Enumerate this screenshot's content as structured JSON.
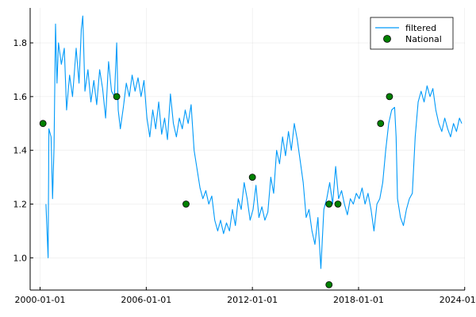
{
  "chart_data": {
    "type": "line",
    "title": "",
    "xlabel": "",
    "ylabel": "",
    "x_axis_type": "date",
    "xlim": [
      "1999-06-10",
      "2024-01-05"
    ],
    "ylim": [
      0.88,
      1.93
    ],
    "x_ticks": [
      {
        "date": "2000-01-01",
        "label": "2000-01-01"
      },
      {
        "date": "2006-01-01",
        "label": "2006-01-01"
      },
      {
        "date": "2012-01-01",
        "label": "2012-01-01"
      },
      {
        "date": "2018-01-01",
        "label": "2018-01-01"
      },
      {
        "date": "2024-01-01",
        "label": "2024-01-01"
      }
    ],
    "y_ticks": [
      1.0,
      1.2,
      1.4,
      1.6,
      1.8
    ],
    "y_tick_labels": [
      "1.0",
      "1.2",
      "1.4",
      "1.6",
      "1.8"
    ],
    "grid": true,
    "legend_position": "top-right",
    "series": [
      {
        "name": "filtered",
        "kind": "line",
        "color": "#009af9",
        "points": [
          [
            "2000-05-01",
            1.2
          ],
          [
            "2000-06-15",
            1.0
          ],
          [
            "2000-07-01",
            1.48
          ],
          [
            "2000-08-15",
            1.45
          ],
          [
            "2000-09-15",
            1.22
          ],
          [
            "2000-10-15",
            1.41
          ],
          [
            "2000-11-15",
            1.87
          ],
          [
            "2000-12-15",
            1.65
          ],
          [
            "2001-01-15",
            1.8
          ],
          [
            "2001-03-15",
            1.72
          ],
          [
            "2001-05-15",
            1.78
          ],
          [
            "2001-07-01",
            1.55
          ],
          [
            "2001-09-01",
            1.68
          ],
          [
            "2001-11-01",
            1.6
          ],
          [
            "2002-01-15",
            1.78
          ],
          [
            "2002-03-15",
            1.65
          ],
          [
            "2002-05-01",
            1.85
          ],
          [
            "2002-06-01",
            1.9
          ],
          [
            "2002-07-15",
            1.62
          ],
          [
            "2002-09-15",
            1.7
          ],
          [
            "2002-11-15",
            1.58
          ],
          [
            "2003-01-15",
            1.66
          ],
          [
            "2003-03-15",
            1.57
          ],
          [
            "2003-05-15",
            1.7
          ],
          [
            "2003-07-15",
            1.63
          ],
          [
            "2003-09-15",
            1.52
          ],
          [
            "2003-11-15",
            1.73
          ],
          [
            "2004-01-15",
            1.62
          ],
          [
            "2004-03-15",
            1.6
          ],
          [
            "2004-05-01",
            1.8
          ],
          [
            "2004-06-01",
            1.55
          ],
          [
            "2004-07-15",
            1.48
          ],
          [
            "2004-09-15",
            1.56
          ],
          [
            "2004-11-15",
            1.65
          ],
          [
            "2005-01-15",
            1.6
          ],
          [
            "2005-03-15",
            1.68
          ],
          [
            "2005-05-15",
            1.62
          ],
          [
            "2005-07-15",
            1.67
          ],
          [
            "2005-09-15",
            1.6
          ],
          [
            "2005-11-15",
            1.66
          ],
          [
            "2006-01-15",
            1.52
          ],
          [
            "2006-03-15",
            1.45
          ],
          [
            "2006-05-15",
            1.55
          ],
          [
            "2006-07-15",
            1.48
          ],
          [
            "2006-09-15",
            1.58
          ],
          [
            "2006-11-15",
            1.46
          ],
          [
            "2007-01-15",
            1.52
          ],
          [
            "2007-03-15",
            1.44
          ],
          [
            "2007-05-15",
            1.61
          ],
          [
            "2007-07-15",
            1.5
          ],
          [
            "2007-09-15",
            1.45
          ],
          [
            "2007-11-15",
            1.52
          ],
          [
            "2008-01-15",
            1.48
          ],
          [
            "2008-03-15",
            1.55
          ],
          [
            "2008-05-15",
            1.5
          ],
          [
            "2008-07-15",
            1.57
          ],
          [
            "2008-09-15",
            1.4
          ],
          [
            "2008-11-15",
            1.33
          ],
          [
            "2009-01-15",
            1.26
          ],
          [
            "2009-03-15",
            1.22
          ],
          [
            "2009-05-15",
            1.25
          ],
          [
            "2009-07-15",
            1.2
          ],
          [
            "2009-09-15",
            1.23
          ],
          [
            "2009-11-15",
            1.14
          ],
          [
            "2010-01-15",
            1.1
          ],
          [
            "2010-03-15",
            1.14
          ],
          [
            "2010-05-15",
            1.09
          ],
          [
            "2010-07-15",
            1.13
          ],
          [
            "2010-09-15",
            1.1
          ],
          [
            "2010-11-15",
            1.18
          ],
          [
            "2011-01-15",
            1.12
          ],
          [
            "2011-03-15",
            1.22
          ],
          [
            "2011-05-15",
            1.18
          ],
          [
            "2011-07-15",
            1.28
          ],
          [
            "2011-09-15",
            1.22
          ],
          [
            "2011-11-15",
            1.14
          ],
          [
            "2012-01-15",
            1.18
          ],
          [
            "2012-03-15",
            1.27
          ],
          [
            "2012-05-15",
            1.15
          ],
          [
            "2012-07-15",
            1.19
          ],
          [
            "2012-09-15",
            1.14
          ],
          [
            "2012-11-15",
            1.17
          ],
          [
            "2013-01-15",
            1.3
          ],
          [
            "2013-03-15",
            1.24
          ],
          [
            "2013-05-15",
            1.4
          ],
          [
            "2013-07-15",
            1.35
          ],
          [
            "2013-09-15",
            1.45
          ],
          [
            "2013-11-15",
            1.38
          ],
          [
            "2014-01-15",
            1.47
          ],
          [
            "2014-03-15",
            1.4
          ],
          [
            "2014-05-15",
            1.5
          ],
          [
            "2014-07-15",
            1.44
          ],
          [
            "2014-09-15",
            1.36
          ],
          [
            "2014-11-15",
            1.28
          ],
          [
            "2015-01-15",
            1.15
          ],
          [
            "2015-03-15",
            1.18
          ],
          [
            "2015-05-15",
            1.1
          ],
          [
            "2015-07-15",
            1.05
          ],
          [
            "2015-09-15",
            1.15
          ],
          [
            "2015-11-15",
            0.96
          ],
          [
            "2016-01-15",
            1.18
          ],
          [
            "2016-03-15",
            1.22
          ],
          [
            "2016-05-15",
            1.28
          ],
          [
            "2016-07-15",
            1.2
          ],
          [
            "2016-09-15",
            1.34
          ],
          [
            "2016-11-15",
            1.22
          ],
          [
            "2017-01-15",
            1.25
          ],
          [
            "2017-03-15",
            1.2
          ],
          [
            "2017-05-15",
            1.16
          ],
          [
            "2017-07-15",
            1.22
          ],
          [
            "2017-09-15",
            1.2
          ],
          [
            "2017-11-15",
            1.24
          ],
          [
            "2018-01-15",
            1.22
          ],
          [
            "2018-03-15",
            1.26
          ],
          [
            "2018-05-15",
            1.2
          ],
          [
            "2018-07-15",
            1.24
          ],
          [
            "2018-09-15",
            1.18
          ],
          [
            "2018-11-15",
            1.1
          ],
          [
            "2019-01-15",
            1.2
          ],
          [
            "2019-03-15",
            1.22
          ],
          [
            "2019-05-15",
            1.28
          ],
          [
            "2019-07-15",
            1.4
          ],
          [
            "2019-09-15",
            1.5
          ],
          [
            "2019-11-15",
            1.55
          ],
          [
            "2020-01-15",
            1.56
          ],
          [
            "2020-02-15",
            1.45
          ],
          [
            "2020-03-15",
            1.22
          ],
          [
            "2020-05-15",
            1.15
          ],
          [
            "2020-07-15",
            1.12
          ],
          [
            "2020-09-15",
            1.18
          ],
          [
            "2020-11-15",
            1.22
          ],
          [
            "2021-01-15",
            1.24
          ],
          [
            "2021-03-15",
            1.45
          ],
          [
            "2021-05-15",
            1.58
          ],
          [
            "2021-07-15",
            1.62
          ],
          [
            "2021-09-15",
            1.58
          ],
          [
            "2021-11-15",
            1.64
          ],
          [
            "2022-01-15",
            1.6
          ],
          [
            "2022-03-15",
            1.63
          ],
          [
            "2022-05-15",
            1.55
          ],
          [
            "2022-07-15",
            1.5
          ],
          [
            "2022-09-15",
            1.47
          ],
          [
            "2022-11-15",
            1.52
          ],
          [
            "2023-01-15",
            1.48
          ],
          [
            "2023-03-15",
            1.45
          ],
          [
            "2023-05-15",
            1.5
          ],
          [
            "2023-07-15",
            1.47
          ],
          [
            "2023-09-15",
            1.52
          ],
          [
            "2023-11-01",
            1.5
          ]
        ]
      },
      {
        "name": "National",
        "kind": "scatter",
        "color": "#008000",
        "points": [
          [
            "2000-03-01",
            1.5
          ],
          [
            "2004-05-01",
            1.6
          ],
          [
            "2008-04-01",
            1.2
          ],
          [
            "2012-01-01",
            1.3
          ],
          [
            "2016-05-01",
            1.2
          ],
          [
            "2016-05-01",
            0.9
          ],
          [
            "2016-11-01",
            1.2
          ],
          [
            "2019-04-01",
            1.5
          ],
          [
            "2019-10-01",
            1.6
          ]
        ]
      }
    ]
  }
}
